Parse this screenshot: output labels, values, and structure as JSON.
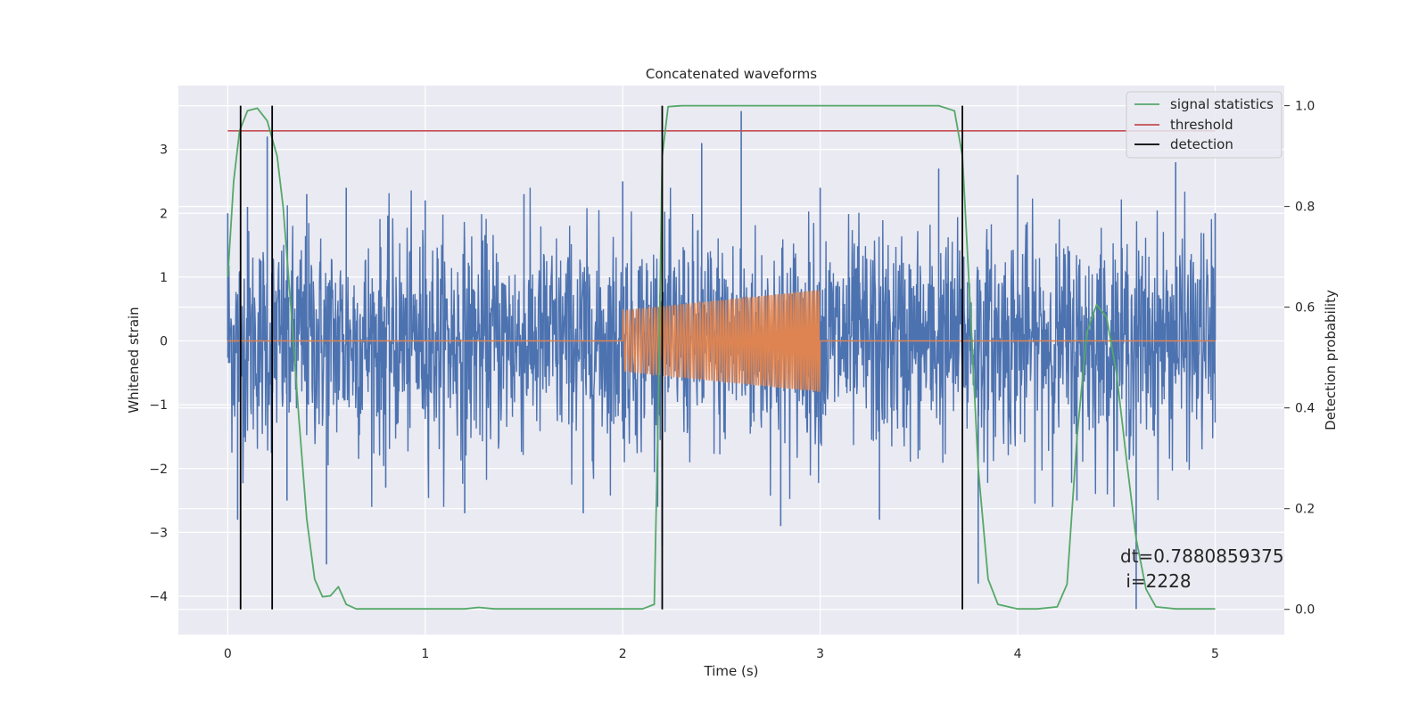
{
  "chart_data": {
    "type": "line",
    "title": "Concatenated waveforms",
    "xlabel": "Time (s)",
    "ylabel": "Whitened strain",
    "ylabel_right": "Detection probability",
    "xlim": [
      -0.25,
      5.35
    ],
    "ylim": [
      -4.6,
      4.0
    ],
    "ylim_right": [
      -0.05,
      1.04
    ],
    "x_ticks": [
      0,
      1,
      2,
      3,
      4,
      5
    ],
    "y_ticks": [
      -4,
      -3,
      -2,
      -1,
      0,
      1,
      2,
      3
    ],
    "y_right_ticks": [
      0.0,
      0.2,
      0.4,
      0.6,
      0.8,
      1.0
    ],
    "x_tick_labels": [
      "0",
      "1",
      "2",
      "3",
      "4",
      "5"
    ],
    "y_tick_labels": [
      "−4",
      "−3",
      "−2",
      "−1",
      "0",
      "1",
      "2",
      "3"
    ],
    "y_right_tick_labels": [
      "0.0",
      "0.2",
      "0.4",
      "0.6",
      "0.8",
      "1.0"
    ],
    "grid": true,
    "legend_position": "top-right",
    "legend": [
      "signal statistics",
      "threshold",
      "detection"
    ],
    "series": [
      {
        "name": "strain",
        "axis": "left",
        "color": "#4c72b0",
        "description_x_range": [
          0,
          5
        ],
        "x": [
          0.0,
          0.05,
          0.1,
          0.2,
          0.3,
          0.4,
          0.5,
          0.6,
          0.8,
          1.0,
          1.2,
          1.5,
          1.8,
          2.0,
          2.2,
          2.4,
          2.6,
          2.8,
          3.0,
          3.3,
          3.6,
          3.8,
          4.0,
          4.3,
          4.6,
          4.8,
          5.0
        ],
        "y": [
          2.0,
          -2.8,
          2.1,
          3.2,
          -2.5,
          2.3,
          -3.5,
          2.4,
          -2.3,
          2.2,
          -2.7,
          2.3,
          -2.7,
          2.5,
          -3.2,
          3.1,
          3.6,
          -2.9,
          2.4,
          -2.8,
          2.7,
          -3.8,
          2.6,
          -2.5,
          -4.2,
          2.8,
          2.0
        ]
      },
      {
        "name": "template",
        "axis": "left",
        "color": "#dd8452",
        "segments": [
          {
            "x": [
              0.0,
              2.0
            ],
            "y": [
              0.0,
              0.0
            ]
          },
          {
            "x": [
              2.0,
              3.0
            ],
            "amplitude_start": 0.48,
            "amplitude_end": 0.8,
            "oscillation_frequency_hz": 60
          },
          {
            "x": [
              3.0,
              5.0
            ],
            "y": [
              0.0,
              0.0
            ]
          }
        ]
      },
      {
        "name": "signal statistics",
        "axis": "right",
        "color": "#55a868",
        "x": [
          0.0,
          0.03,
          0.06,
          0.1,
          0.15,
          0.2,
          0.25,
          0.28,
          0.32,
          0.36,
          0.4,
          0.44,
          0.48,
          0.52,
          0.56,
          0.6,
          0.65,
          0.8,
          1.0,
          1.2,
          1.27,
          1.35,
          1.6,
          1.9,
          2.1,
          2.16,
          2.18,
          2.2,
          2.23,
          2.3,
          2.6,
          3.0,
          3.4,
          3.6,
          3.68,
          3.72,
          3.76,
          3.8,
          3.85,
          3.9,
          4.0,
          4.1,
          4.2,
          4.25,
          4.3,
          4.35,
          4.4,
          4.45,
          4.5,
          4.55,
          4.6,
          4.65,
          4.7,
          4.8,
          5.0
        ],
        "y": [
          0.66,
          0.85,
          0.95,
          0.99,
          0.995,
          0.97,
          0.9,
          0.8,
          0.6,
          0.38,
          0.18,
          0.06,
          0.025,
          0.027,
          0.045,
          0.01,
          0.001,
          0.001,
          0.001,
          0.001,
          0.004,
          0.001,
          0.001,
          0.001,
          0.001,
          0.01,
          0.4,
          0.9,
          0.998,
          1.0,
          1.0,
          1.0,
          1.0,
          1.0,
          0.99,
          0.9,
          0.6,
          0.28,
          0.06,
          0.01,
          0.001,
          0.001,
          0.005,
          0.05,
          0.34,
          0.55,
          0.605,
          0.58,
          0.47,
          0.3,
          0.14,
          0.04,
          0.005,
          0.001,
          0.001
        ]
      },
      {
        "name": "threshold",
        "axis": "right",
        "color": "#c44e52",
        "x": [
          0.0,
          5.0
        ],
        "y": [
          0.95,
          0.95
        ]
      }
    ],
    "detections": {
      "name": "detection",
      "color": "#000000",
      "x": [
        0.065,
        0.225,
        2.2,
        3.72
      ]
    },
    "annotation": {
      "line1": "dt=0.7880859375",
      "line2": " i=2228"
    }
  }
}
